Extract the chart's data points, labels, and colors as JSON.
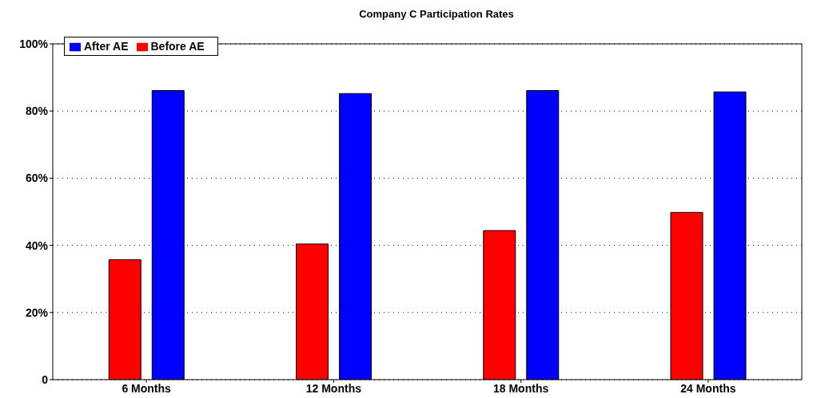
{
  "chart_data": {
    "type": "bar",
    "title": "Company C Participation Rates",
    "categories": [
      "6 Months",
      "12 Months",
      "18 Months",
      "24 Months"
    ],
    "series": [
      {
        "name": "Before AE",
        "color": "#ff0000",
        "values": [
          35.7,
          40.4,
          44.4,
          49.8
        ]
      },
      {
        "name": "After AE",
        "color": "#0000ff",
        "values": [
          86.1,
          85.2,
          86.1,
          85.7
        ]
      }
    ],
    "ylim": [
      0,
      100
    ],
    "yticks": [
      0,
      {
        "value": 20,
        "label": "20%"
      },
      {
        "value": 40,
        "label": "40%"
      },
      {
        "value": 60,
        "label": "60%"
      },
      {
        "value": 80,
        "label": "80%"
      },
      {
        "value": 100,
        "label": "100%"
      }
    ],
    "grid": "y",
    "legend": "top left"
  }
}
